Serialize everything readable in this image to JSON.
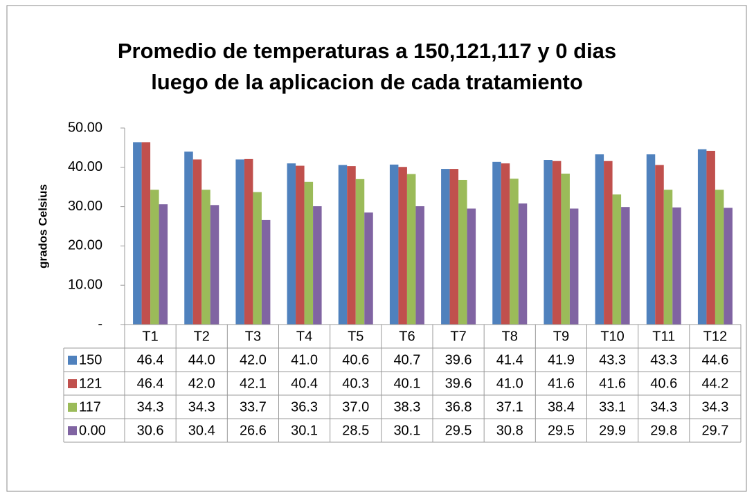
{
  "chart_data": {
    "type": "bar",
    "title": [
      "Promedio de temperaturas a 150,121,117 y 0 dias",
      "luego de la aplicacion de cada tratamiento"
    ],
    "ylabel": "grados Celsius",
    "categories": [
      "T1",
      "T2",
      "T3",
      "T4",
      "T5",
      "T6",
      "T7",
      "T8",
      "T9",
      "T10",
      "T11",
      "T12"
    ],
    "series": [
      {
        "name": "150",
        "color": "#4f81bd",
        "values": [
          46.4,
          44.0,
          42.0,
          41.0,
          40.6,
          40.7,
          39.6,
          41.4,
          41.9,
          43.3,
          43.3,
          44.6
        ],
        "value_labels": [
          "46.4",
          "44.0",
          "42.0",
          "41.0",
          "40.6",
          "40.7",
          "39.6",
          "41.4",
          "41.9",
          "43.3",
          "43.3",
          "44.6"
        ]
      },
      {
        "name": "121",
        "color": "#c0504d",
        "values": [
          46.4,
          42.0,
          42.1,
          40.4,
          40.3,
          40.1,
          39.6,
          41.0,
          41.6,
          41.6,
          40.6,
          44.2
        ],
        "value_labels": [
          "46.4",
          "42.0",
          "42.1",
          "40.4",
          "40.3",
          "40.1",
          "39.6",
          "41.0",
          "41.6",
          "41.6",
          "40.6",
          "44.2"
        ]
      },
      {
        "name": "117",
        "color": "#9bbb59",
        "values": [
          34.3,
          34.3,
          33.7,
          36.3,
          37.0,
          38.3,
          36.8,
          37.1,
          38.4,
          33.1,
          34.3,
          34.3
        ],
        "value_labels": [
          "34.3",
          "34.3",
          "33.7",
          "36.3",
          "37.0",
          "38.3",
          "36.8",
          "37.1",
          "38.4",
          "33.1",
          "34.3",
          "34.3"
        ]
      },
      {
        "name": "0.00",
        "color": "#8064a2",
        "values": [
          30.6,
          30.4,
          26.6,
          30.1,
          28.5,
          30.1,
          29.5,
          30.8,
          29.5,
          29.9,
          29.8,
          29.7
        ],
        "value_labels": [
          "30.6",
          "30.4",
          "26.6",
          "30.1",
          "28.5",
          "30.1",
          "29.5",
          "30.8",
          "29.5",
          "29.9",
          "29.8",
          "29.7"
        ]
      }
    ],
    "ylim": [
      0,
      50
    ],
    "yticks": [
      {
        "value": 0,
        "label": "-"
      },
      {
        "value": 10,
        "label": "10.00"
      },
      {
        "value": 20,
        "label": "20.00"
      },
      {
        "value": 30,
        "label": "30.00"
      },
      {
        "value": 40,
        "label": "40.00"
      },
      {
        "value": 50,
        "label": "50.00"
      }
    ],
    "grid": false
  }
}
